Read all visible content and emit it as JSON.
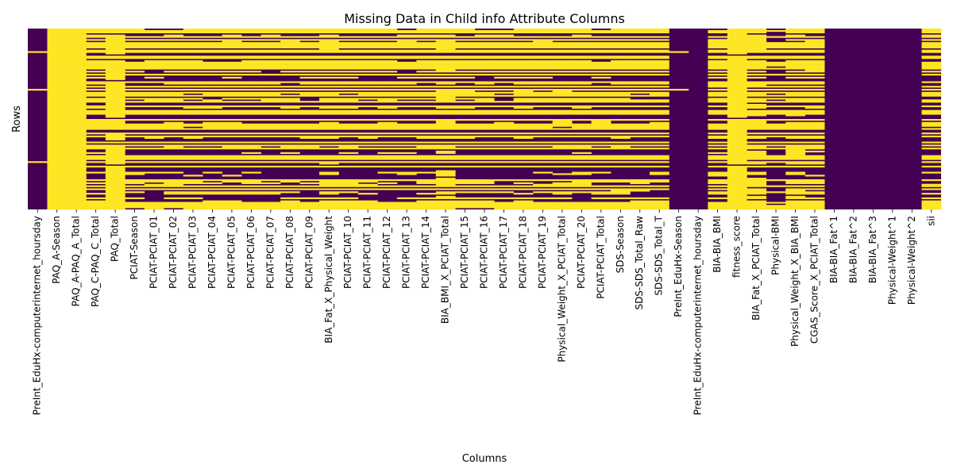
{
  "chart_data": {
    "type": "heatmap",
    "title": "Missing Data in Child info Attribute Columns",
    "xlabel": "Columns",
    "ylabel": "Rows",
    "colors": {
      "missing": "#fde725",
      "present": "#440154"
    },
    "columns": [
      "PreInt_EduHx-computerinternet_hoursday",
      "PAQ_A-Season",
      "PAQ_A-PAQ_A_Total",
      "PAQ_C-PAQ_C_Total",
      "PAQ_Total",
      "PCIAT-Season",
      "PCIAT-PCIAT_01",
      "PCIAT-PCIAT_02",
      "PCIAT-PCIAT_03",
      "PCIAT-PCIAT_04",
      "PCIAT-PCIAT_05",
      "PCIAT-PCIAT_06",
      "PCIAT-PCIAT_07",
      "PCIAT-PCIAT_08",
      "PCIAT-PCIAT_09",
      "BIA_Fat_X_Physical_Weight",
      "PCIAT-PCIAT_10",
      "PCIAT-PCIAT_11",
      "PCIAT-PCIAT_12",
      "PCIAT-PCIAT_13",
      "PCIAT-PCIAT_14",
      "BIA_BMI_X_PCIAT_Total",
      "PCIAT-PCIAT_15",
      "PCIAT-PCIAT_16",
      "PCIAT-PCIAT_17",
      "PCIAT-PCIAT_18",
      "PCIAT-PCIAT_19",
      "Physical_Weight_X_PCIAT_Total",
      "PCIAT-PCIAT_20",
      "PCIAT-PCIAT_Total",
      "SDS-Season",
      "SDS-SDS_Total_Raw",
      "SDS-SDS_Total_T",
      "PreInt_EduHx-Season",
      "PreInt_EduHx-computerinternet_hoursday",
      "BIA-BIA_BMI",
      "fitness_score",
      "BIA_Fat_X_PCIAT_Total",
      "Physical-BMI",
      "Physical_Weight_X_BIA_BMI",
      "CGAS_Score_X_PCIAT_Total",
      "BIA-BIA_Fat^1",
      "BIA-BIA_Fat^2",
      "BIA-BIA_Fat^3",
      "Physical-Weight^1",
      "Physical-Weight^2",
      "sii"
    ],
    "approx_missing_fraction": [
      0.1,
      1.0,
      1.0,
      0.55,
      0.85,
      0.5,
      0.5,
      0.5,
      0.5,
      0.5,
      0.5,
      0.5,
      0.5,
      0.5,
      0.5,
      0.6,
      0.5,
      0.5,
      0.5,
      0.5,
      0.5,
      0.65,
      0.5,
      0.5,
      0.5,
      0.5,
      0.5,
      0.5,
      0.5,
      0.5,
      0.5,
      0.5,
      0.5,
      0.08,
      0.05,
      0.55,
      0.9,
      0.65,
      0.4,
      0.6,
      0.55,
      0.0,
      0.0,
      0.0,
      0.0,
      0.0,
      0.5
    ],
    "y_ticks": "none",
    "colorbar": false
  }
}
